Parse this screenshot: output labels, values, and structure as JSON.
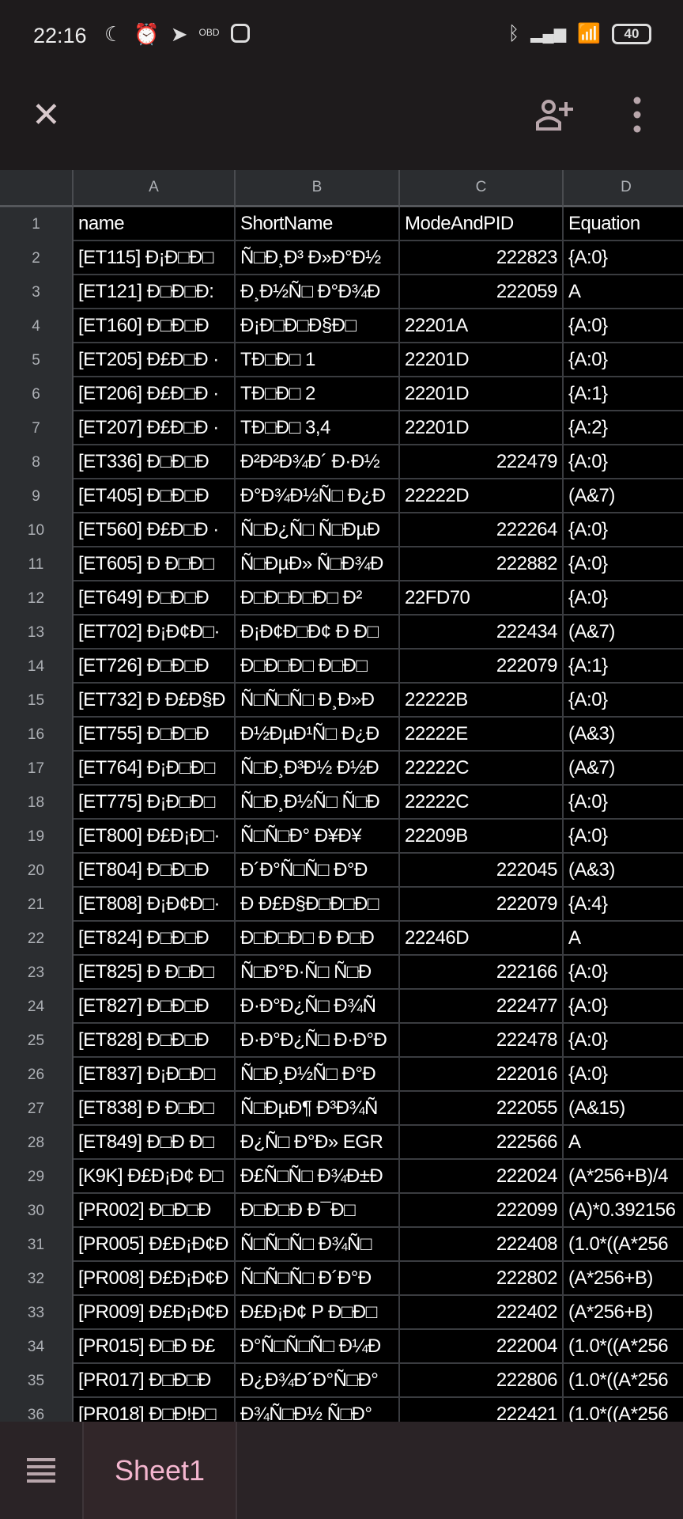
{
  "status_bar": {
    "time": "22:16",
    "battery": "40",
    "left_icons": [
      "moon-icon",
      "alarm-icon",
      "telegram-icon",
      "obd-icon",
      "instagram-icon"
    ],
    "right_icons": [
      "bluetooth-icon",
      "signal-icon",
      "wifi-icon",
      "battery-icon"
    ]
  },
  "toolbar": {
    "close_icon": "close-icon",
    "share_icon": "add-person-icon",
    "more_icon": "more-vert-icon"
  },
  "columns": [
    "A",
    "B",
    "C",
    "D"
  ],
  "rows": [
    {
      "n": "1",
      "a": "name",
      "b": "ShortName",
      "c": "ModeAndPID",
      "d": "Equation",
      "cnum": false
    },
    {
      "n": "2",
      "a": "[ET115] Đ¡Đ□Đ□",
      "b": "Ñ□Đ¸Đ³ Đ»Đ°Đ½",
      "c": "222823",
      "d": "{A:0}",
      "cnum": true
    },
    {
      "n": "3",
      "a": "[ET121] Đ□Đ□Đ:",
      "b": "Đ¸Đ½Ñ□ Đ°Đ¾Đ",
      "c": "222059",
      "d": "A",
      "cnum": true
    },
    {
      "n": "4",
      "a": "[ET160] Đ□Đ□Đ",
      "b": "Đ¡Đ□Đ□Đ§Đ□",
      "c": "22201A",
      "d": "{A:0}",
      "cnum": false
    },
    {
      "n": "5",
      "a": "[ET205] Đ£Đ□Đ ·",
      "b": "TĐ□Đ□ 1",
      "c": "22201D",
      "d": "{A:0}",
      "cnum": false
    },
    {
      "n": "6",
      "a": "[ET206] Đ£Đ□Đ ·",
      "b": "TĐ□Đ□ 2",
      "c": "22201D",
      "d": "{A:1}",
      "cnum": false
    },
    {
      "n": "7",
      "a": "[ET207] Đ£Đ□Đ ·",
      "b": "TĐ□Đ□ 3,4",
      "c": "22201D",
      "d": "{A:2}",
      "cnum": false
    },
    {
      "n": "8",
      "a": "[ET336] Đ□Đ□Đ",
      "b": "Đ²Đ²Đ¾Đ´ Đ·Đ½",
      "c": "222479",
      "d": "{A:0}",
      "cnum": true
    },
    {
      "n": "9",
      "a": "[ET405] Đ□Đ□Đ",
      "b": "Đ°Đ¾Đ½Ñ□ Đ¿Đ",
      "c": "22222D",
      "d": "(A&7)",
      "cnum": false
    },
    {
      "n": "10",
      "a": "[ET560] Đ£Đ□Đ ·",
      "b": "Ñ□Đ¿Ñ□ Ñ□ĐµĐ",
      "c": "222264",
      "d": "{A:0}",
      "cnum": true
    },
    {
      "n": "11",
      "a": "[ET605] Đ Đ□Đ□",
      "b": "Ñ□ĐµĐ» Ñ□Đ¾Đ",
      "c": "222882",
      "d": "{A:0}",
      "cnum": true
    },
    {
      "n": "12",
      "a": "[ET649] Đ□Đ□Đ",
      "b": "Đ□Đ□Đ□Đ□ Đ²",
      "c": "22FD70",
      "d": "{A:0}",
      "cnum": false
    },
    {
      "n": "13",
      "a": "[ET702] Đ¡Đ¢Đ□·",
      "b": "Đ¡Đ¢Đ□Đ¢ Đ Đ□",
      "c": "222434",
      "d": "(A&7)",
      "cnum": true
    },
    {
      "n": "14",
      "a": "[ET726] Đ□Đ□Đ",
      "b": "Đ□Đ□Đ□ Đ□Đ□",
      "c": "222079",
      "d": "{A:1}",
      "cnum": true
    },
    {
      "n": "15",
      "a": "[ET732] Đ Đ£Đ§Đ",
      "b": "Ñ□Ñ□Ñ□ Đ¸Đ»Đ",
      "c": "22222B",
      "d": "{A:0}",
      "cnum": false
    },
    {
      "n": "16",
      "a": "[ET755] Đ□Đ□Đ",
      "b": "Đ½ĐµĐ¹Ñ□ Đ¿Đ",
      "c": "22222E",
      "d": "(A&3)",
      "cnum": false
    },
    {
      "n": "17",
      "a": "[ET764] Đ¡Đ□Đ□",
      "b": "Ñ□Đ¸Đ³Đ½ Đ½Đ",
      "c": "22222C",
      "d": "(A&7)",
      "cnum": false
    },
    {
      "n": "18",
      "a": "[ET775] Đ¡Đ□Đ□",
      "b": "Ñ□Đ¸Đ½Ñ□ Ñ□Đ",
      "c": "22222C",
      "d": "{A:0}",
      "cnum": false
    },
    {
      "n": "19",
      "a": "[ET800] Đ£Đ¡Đ□·",
      "b": "Ñ□Ñ□Đ° Đ¥Đ¥",
      "c": "22209B",
      "d": "{A:0}",
      "cnum": false
    },
    {
      "n": "20",
      "a": "[ET804] Đ□Đ□Đ",
      "b": "Đ´Đ°Ñ□Ñ□ Đ°Đ",
      "c": "222045",
      "d": "(A&3)",
      "cnum": true
    },
    {
      "n": "21",
      "a": "[ET808] Đ¡Đ¢Đ□·",
      "b": "Đ Đ£Đ§Đ□Đ□Đ□",
      "c": "222079",
      "d": "{A:4}",
      "cnum": true
    },
    {
      "n": "22",
      "a": "[ET824] Đ□Đ□Đ",
      "b": "Đ□Đ□Đ□ Đ Đ□Đ",
      "c": "22246D",
      "d": "A",
      "cnum": false
    },
    {
      "n": "23",
      "a": "[ET825] Đ Đ□Đ□",
      "b": "Ñ□Đ°Đ·Ñ□ Ñ□Đ",
      "c": "222166",
      "d": "{A:0}",
      "cnum": true
    },
    {
      "n": "24",
      "a": "[ET827] Đ□Đ□Đ",
      "b": "Đ·Đ°Đ¿Ñ□ Đ¾Ñ",
      "c": "222477",
      "d": "{A:0}",
      "cnum": true
    },
    {
      "n": "25",
      "a": "[ET828] Đ□Đ□Đ",
      "b": "Đ·Đ°Đ¿Ñ□ Đ·Đ°Đ",
      "c": "222478",
      "d": "{A:0}",
      "cnum": true
    },
    {
      "n": "26",
      "a": "[ET837] Đ¡Đ□Đ□",
      "b": "Ñ□Đ¸Đ½Ñ□ Đ°Đ",
      "c": "222016",
      "d": "{A:0}",
      "cnum": true
    },
    {
      "n": "27",
      "a": "[ET838] Đ Đ□Đ□",
      "b": "Ñ□ĐµĐ¶ Đ³Đ¾Ñ",
      "c": "222055",
      "d": "(A&15)",
      "cnum": true
    },
    {
      "n": "28",
      "a": "[ET849] Đ□Đ Đ□",
      "b": "Đ¿Ñ□ Đ°Đ» EGR",
      "c": "222566",
      "d": "A",
      "cnum": true
    },
    {
      "n": "29",
      "a": "[K9K] Đ£Đ¡Đ¢ Đ□",
      "b": "Đ£Ñ□Ñ□ Đ¾Đ±Đ",
      "c": "222024",
      "d": "(A*256+B)/4",
      "cnum": true
    },
    {
      "n": "30",
      "a": "[PR002] Đ□Đ□Đ",
      "b": "Đ□Đ□Đ Đ¯Đ□",
      "c": "222099",
      "d": "(A)*0.392156",
      "cnum": true
    },
    {
      "n": "31",
      "a": "[PR005] Đ£Đ¡Đ¢Đ",
      "b": "Ñ□Ñ□Ñ□ Đ¾Ñ□",
      "c": "222408",
      "d": "(1.0*((A*256",
      "cnum": true
    },
    {
      "n": "32",
      "a": "[PR008] Đ£Đ¡Đ¢Đ",
      "b": "Ñ□Ñ□Ñ□ Đ´Đ°Đ",
      "c": "222802",
      "d": "(A*256+B)",
      "cnum": true
    },
    {
      "n": "33",
      "a": "[PR009] Đ£Đ¡Đ¢Đ",
      "b": "Đ£Đ¡Đ¢ P Đ□Đ□",
      "c": "222402",
      "d": "(A*256+B)",
      "cnum": true
    },
    {
      "n": "34",
      "a": "[PR015] Đ□Đ Đ£",
      "b": "Đ°Ñ□Ñ□Ñ□ Đ¼Đ",
      "c": "222004",
      "d": "(1.0*((A*256",
      "cnum": true
    },
    {
      "n": "35",
      "a": "[PR017] Đ□Đ□Đ",
      "b": "Đ¿Đ¾Đ´Đ°Ñ□Đ°",
      "c": "222806",
      "d": "(1.0*((A*256",
      "cnum": true
    },
    {
      "n": "36",
      "a": "[PR018] Đ□Đ!Đ□",
      "b": "Đ¾Ñ□Đ½ Ñ□Đ°",
      "c": "222421",
      "d": "(1.0*((A*256",
      "cnum": true
    }
  ],
  "bottom_bar": {
    "menu_icon": "sheet-list-icon",
    "active_sheet": "Sheet1",
    "accent": "#f4b6cf"
  }
}
